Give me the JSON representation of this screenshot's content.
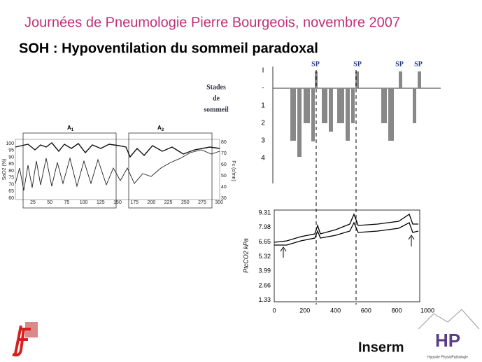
{
  "header": {
    "title": "Journées de Pneumologie Pierre Bourgeois, novembre 2007",
    "subtitle": "SOH : Hypoventilation du sommeil paradoxal"
  },
  "left_chart": {
    "stage_label": [
      "Stades",
      "de",
      "sommeil"
    ],
    "panels": [
      {
        "letter": "A",
        "sub": "1"
      },
      {
        "letter": "A",
        "sub": "2"
      }
    ],
    "y_label": "SaO2 (%)",
    "yticks": [
      100,
      95,
      90,
      85,
      80,
      75,
      70,
      65,
      60
    ],
    "y2_label": "Fc (c/mn)",
    "y2ticks": [
      80,
      70,
      60,
      50,
      40,
      30
    ],
    "xticks": [
      25,
      50,
      75,
      100,
      125,
      150,
      175,
      200,
      225,
      250,
      275,
      300
    ]
  },
  "hypnogram": {
    "yticks": [
      "I",
      "-",
      "1",
      "2",
      "3",
      "4"
    ],
    "sp_labels": [
      "SP",
      "SP",
      "SP",
      "SP"
    ]
  },
  "pco2_chart": {
    "y_label": "PtcCO2 kPa",
    "yticks": [
      9.31,
      7.98,
      6.65,
      5.32,
      3.99,
      2.66,
      1.33
    ],
    "xticks": [
      0,
      200,
      400,
      600,
      800,
      1000
    ]
  },
  "logos": {
    "inserm": "Inserm",
    "hp": "Hypoxie PhysioPathologie"
  }
}
